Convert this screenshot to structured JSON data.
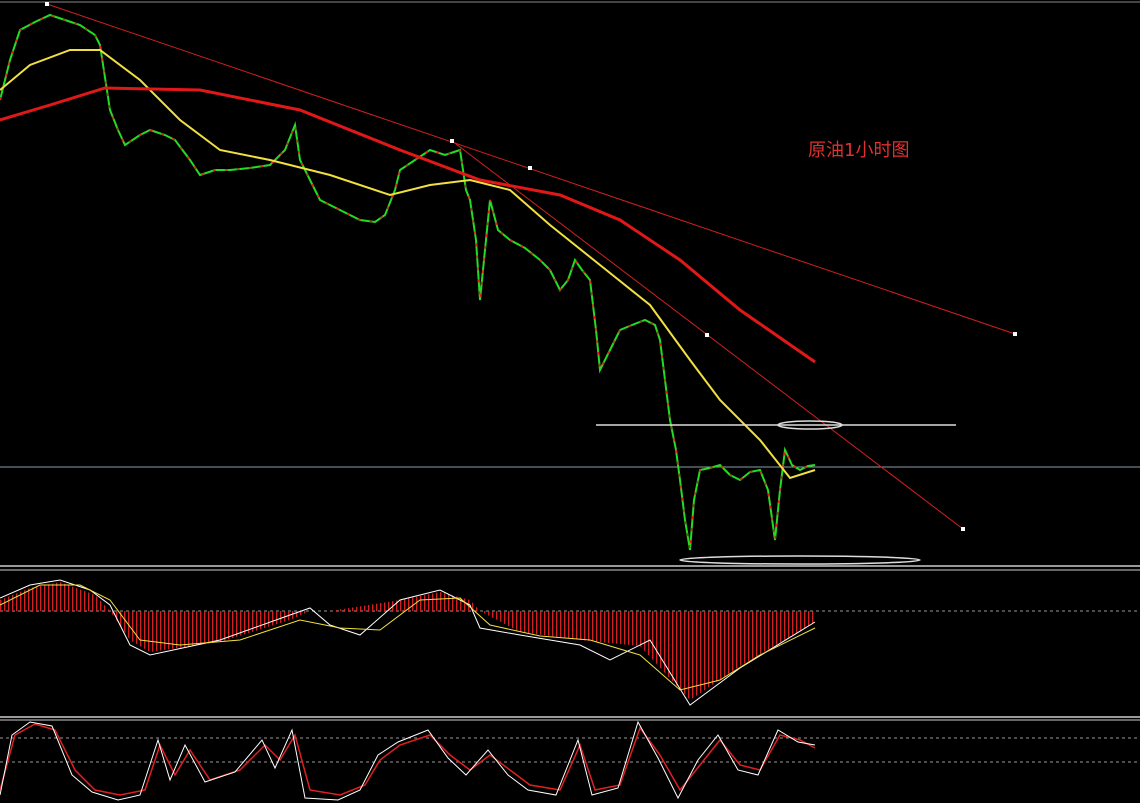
{
  "annotation": "原油1小时图"
}
